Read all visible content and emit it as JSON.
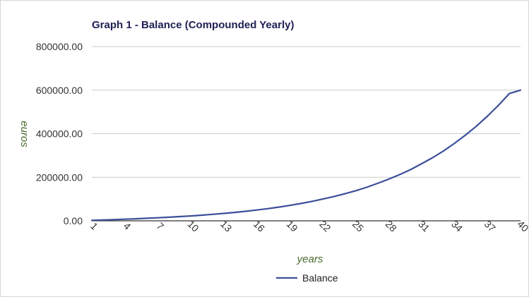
{
  "chart_data": {
    "type": "line",
    "title": "Graph 1 - Balance (Compounded Yearly)",
    "xlabel": "years",
    "ylabel": "euros",
    "x": [
      1,
      2,
      3,
      4,
      5,
      6,
      7,
      8,
      9,
      10,
      11,
      12,
      13,
      14,
      15,
      16,
      17,
      18,
      19,
      20,
      21,
      22,
      23,
      24,
      25,
      26,
      27,
      28,
      29,
      30,
      31,
      32,
      33,
      34,
      35,
      36,
      37,
      38,
      39,
      40
    ],
    "x_tick_labels": [
      "1",
      "4",
      "7",
      "10",
      "13",
      "16",
      "19",
      "22",
      "25",
      "28",
      "31",
      "34",
      "37",
      "40"
    ],
    "y_tick_labels": [
      "0.00",
      "200000.00",
      "400000.00",
      "600000.00",
      "800000.00"
    ],
    "ylim": [
      0,
      800000
    ],
    "grid": true,
    "legend_position": "bottom",
    "series": [
      {
        "name": "Balance",
        "color": "#3b4f9a",
        "values": [
          2260,
          3620,
          5400,
          7300,
          9300,
          11500,
          13900,
          16500,
          19300,
          22400,
          25900,
          29700,
          33900,
          38600,
          43700,
          49400,
          55800,
          62800,
          70700,
          79300,
          88900,
          99600,
          111000,
          124000,
          138000,
          154000,
          172000,
          191000,
          212000,
          235000,
          262000,
          290000,
          321000,
          356000,
          394000,
          435000,
          481000,
          531000,
          585000,
          600000
        ]
      }
    ]
  }
}
